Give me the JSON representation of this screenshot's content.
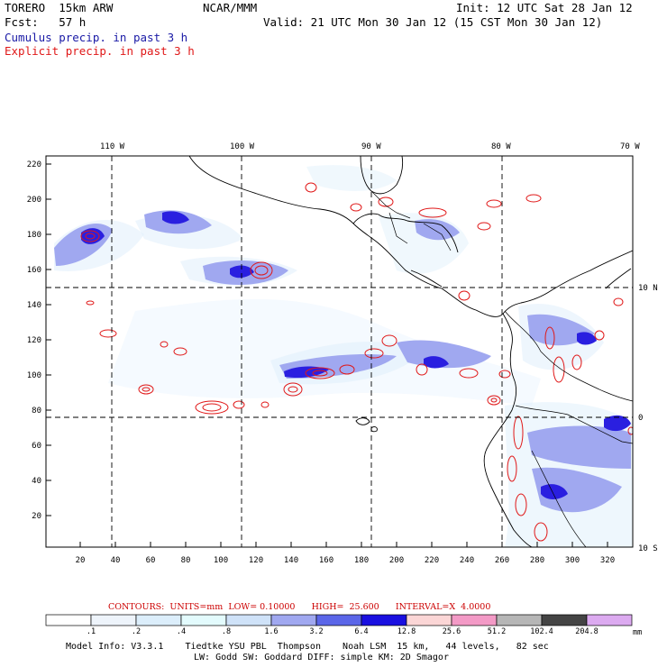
{
  "header": {
    "model": "TORERO  15km ARW",
    "org": "NCAR/MMM",
    "init": "Init: 12 UTC Sat 28 Jan 12",
    "fcst": "Fcst:   57 h",
    "valid": "Valid: 21 UTC Mon 30 Jan 12 (15 CST Mon 30 Jan 12)",
    "cumulus_label": "Cumulus precip. in past 3 h",
    "explicit_label": "Explicit precip. in past 3 h",
    "cumulus_color": "#1a1aa6",
    "explicit_color": "#e01818"
  },
  "map": {
    "lon_labels": [
      "110 W",
      "100 W",
      "90 W",
      "80 W",
      "70 W"
    ],
    "lat_labels": [
      "10 N",
      "0",
      "10 S"
    ],
    "y_ticks": [
      "220",
      "200",
      "180",
      "160",
      "140",
      "120",
      "100",
      "80",
      "60",
      "40",
      "20"
    ],
    "x_ticks": [
      "20",
      "40",
      "60",
      "80",
      "100",
      "120",
      "140",
      "160",
      "180",
      "200",
      "220",
      "240",
      "260",
      "280",
      "300",
      "320"
    ]
  },
  "contours": {
    "text": "CONTOURS:  UNITS=mm  LOW= 0.10000      HIGH=  25.600      INTERVAL=X  4.0000",
    "color": "#cc0000"
  },
  "colorbar": {
    "labels": [
      ".1",
      ".2",
      ".4",
      ".8",
      "1.6",
      "3.2",
      "6.4",
      "12.8",
      "25.6",
      "51.2",
      "102.4",
      "204.8"
    ],
    "unit": "mm",
    "colors": [
      "#ffffff",
      "#eef4fb",
      "#dceefb",
      "#e3fbfd",
      "#cfe2f8",
      "#a0a8f0",
      "#5b66e8",
      "#1a10e0",
      "#fbd6d6",
      "#f39ac6",
      "#b6b6b6",
      "#444444",
      "#dcaaf0"
    ]
  },
  "footer": {
    "line1": "Model Info: V3.3.1    Tiedtke YSU PBL  Thompson    Noah LSM  15 km,   44 levels,   82 sec",
    "line2": "LW: Godd SW: Goddard DIFF: simple KM: 2D Smagor"
  }
}
